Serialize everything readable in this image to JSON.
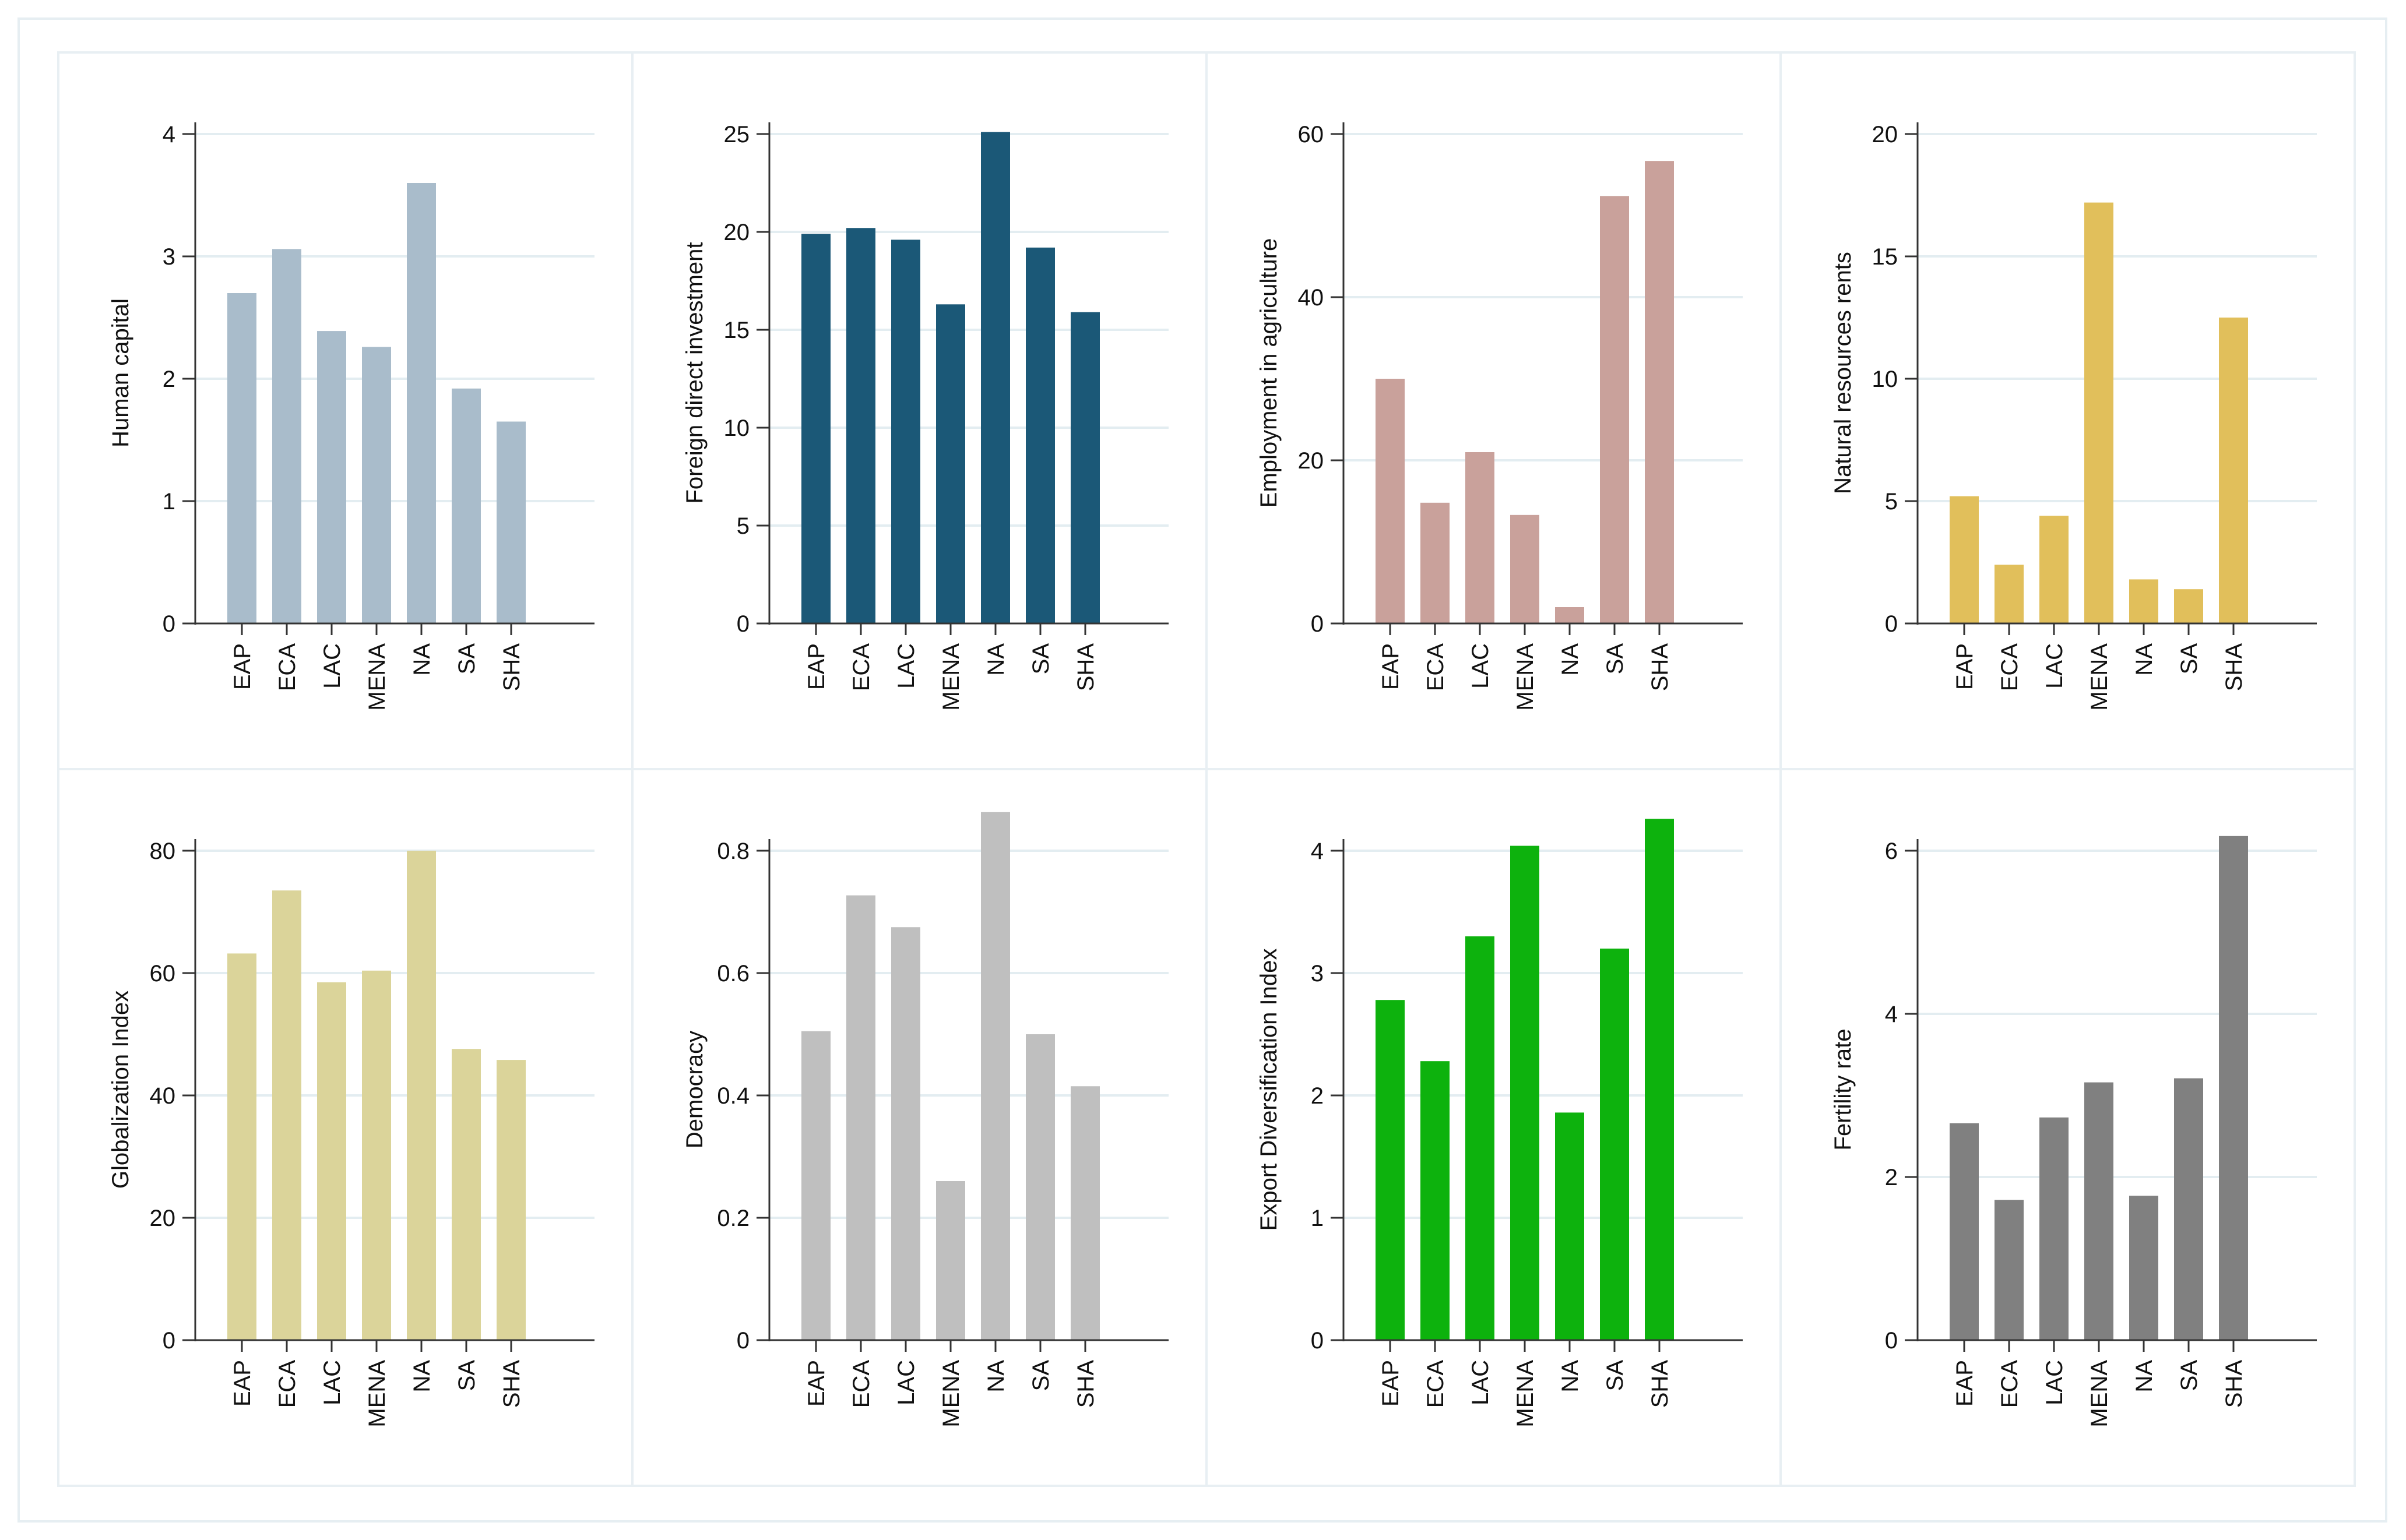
{
  "chart_data": [
    {
      "type": "bar",
      "categories": [
        "EAP",
        "ECA",
        "LAC",
        "MENA",
        "NA",
        "SA",
        "SHA"
      ],
      "values": [
        2.7,
        3.06,
        2.39,
        2.26,
        3.6,
        1.92,
        1.65
      ],
      "ylabel": "Human capital",
      "ylim": [
        0,
        4
      ],
      "yticks": [
        0,
        1,
        2,
        3,
        4
      ],
      "ytick_labels": [
        "0",
        "1",
        "2",
        "3",
        "4"
      ],
      "color": "#a9bccb"
    },
    {
      "type": "bar",
      "categories": [
        "EAP",
        "ECA",
        "LAC",
        "MENA",
        "NA",
        "SA",
        "SHA"
      ],
      "values": [
        19.9,
        20.2,
        19.6,
        16.3,
        25.1,
        19.2,
        15.9
      ],
      "ylabel": "Foreign direct investment",
      "ylim": [
        0,
        25
      ],
      "yticks": [
        0,
        5,
        10,
        15,
        20,
        25
      ],
      "ytick_labels": [
        "0",
        "5",
        "10",
        "15",
        "20",
        "25"
      ],
      "color": "#1b5877"
    },
    {
      "type": "bar",
      "categories": [
        "EAP",
        "ECA",
        "LAC",
        "MENA",
        "NA",
        "SA",
        "SHA"
      ],
      "values": [
        30.0,
        14.8,
        21.0,
        13.3,
        2.0,
        52.4,
        56.7
      ],
      "ylabel": "Employment in agriculture",
      "ylim": [
        0,
        60
      ],
      "yticks": [
        0,
        20,
        40,
        60
      ],
      "ytick_labels": [
        "0",
        "20",
        "40",
        "60"
      ],
      "color": "#c9a19b"
    },
    {
      "type": "bar",
      "categories": [
        "EAP",
        "ECA",
        "LAC",
        "MENA",
        "NA",
        "SA",
        "SHA"
      ],
      "values": [
        5.2,
        2.4,
        4.4,
        17.2,
        1.8,
        1.4,
        12.5
      ],
      "ylabel": "Natural resources rents",
      "ylim": [
        0,
        20
      ],
      "yticks": [
        0,
        5,
        10,
        15,
        20
      ],
      "ytick_labels": [
        "0",
        "5",
        "10",
        "15",
        "20"
      ],
      "color": "#e1bf5b"
    },
    {
      "type": "bar",
      "categories": [
        "EAP",
        "ECA",
        "LAC",
        "MENA",
        "NA",
        "SA",
        "SHA"
      ],
      "values": [
        63.2,
        73.5,
        58.5,
        60.4,
        80.0,
        47.6,
        45.8
      ],
      "ylabel": "Globalization Index",
      "ylim": [
        0,
        80
      ],
      "yticks": [
        0,
        20,
        40,
        60,
        80
      ],
      "ytick_labels": [
        "0",
        "20",
        "40",
        "60",
        "80"
      ],
      "color": "#dbd49a"
    },
    {
      "type": "bar",
      "categories": [
        "EAP",
        "ECA",
        "LAC",
        "MENA",
        "NA",
        "SA",
        "SHA"
      ],
      "values": [
        0.505,
        0.727,
        0.675,
        0.26,
        0.863,
        0.5,
        0.415
      ],
      "ylabel": "Democracy",
      "ylim": [
        0,
        0.8
      ],
      "yticks": [
        0,
        0.2,
        0.4,
        0.6,
        0.8
      ],
      "ytick_labels": [
        "0",
        "0.2",
        "0.4",
        "0.6",
        "0.8"
      ],
      "color": "#bfbfbf"
    },
    {
      "type": "bar",
      "categories": [
        "EAP",
        "ECA",
        "LAC",
        "MENA",
        "NA",
        "SA",
        "SHA"
      ],
      "values": [
        2.78,
        2.28,
        3.3,
        4.04,
        1.86,
        3.2,
        4.26
      ],
      "ylabel": "Export Diversification Index",
      "ylim": [
        0,
        4
      ],
      "yticks": [
        0,
        1,
        2,
        3,
        4
      ],
      "ytick_labels": [
        "0",
        "1",
        "2",
        "3",
        "4"
      ],
      "color": "#0db20d"
    },
    {
      "type": "bar",
      "categories": [
        "EAP",
        "ECA",
        "LAC",
        "MENA",
        "NA",
        "SA",
        "SHA"
      ],
      "values": [
        2.66,
        1.72,
        2.73,
        3.16,
        1.77,
        3.21,
        6.18
      ],
      "ylabel": "Fertility rate",
      "ylim": [
        0,
        6
      ],
      "yticks": [
        0,
        2,
        4,
        6
      ],
      "ytick_labels": [
        "0",
        "2",
        "4",
        "6"
      ],
      "color": "#808080"
    }
  ]
}
